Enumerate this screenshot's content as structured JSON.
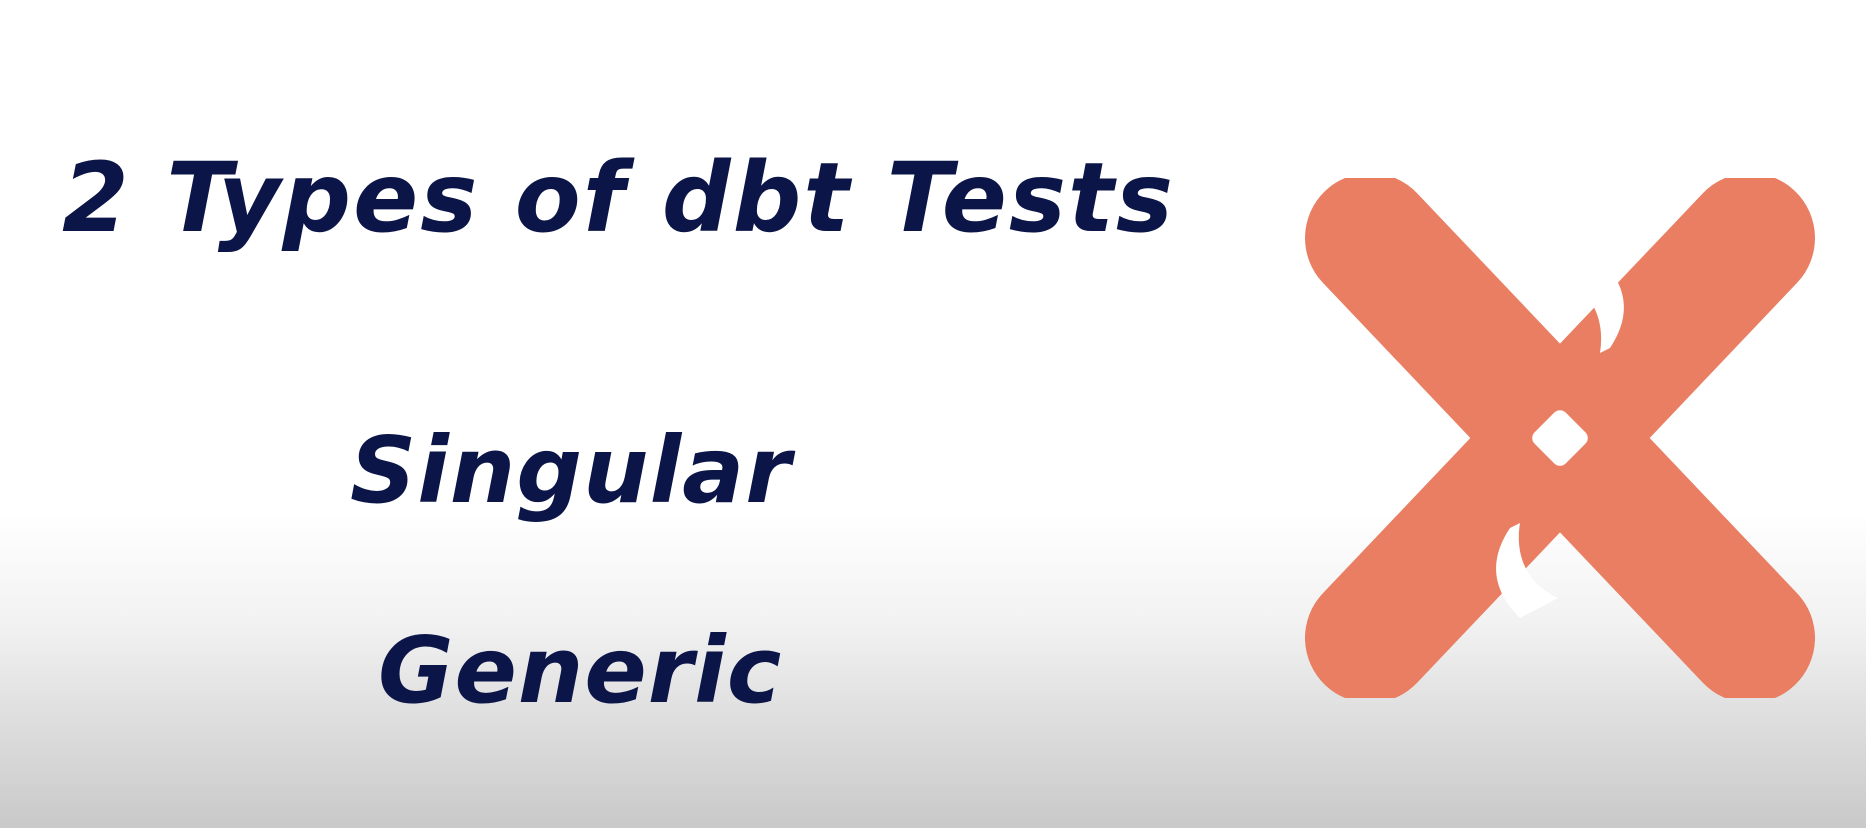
{
  "slide": {
    "title": "2 Types of dbt Tests",
    "types": [
      {
        "label": "Singular"
      },
      {
        "label": "Generic"
      }
    ]
  },
  "logo": {
    "icon": "dbt-logo-icon",
    "color": "#e97e62",
    "inner_color": "#ffffff"
  },
  "colors": {
    "text": "#0b1547",
    "background": "#ffffff"
  }
}
